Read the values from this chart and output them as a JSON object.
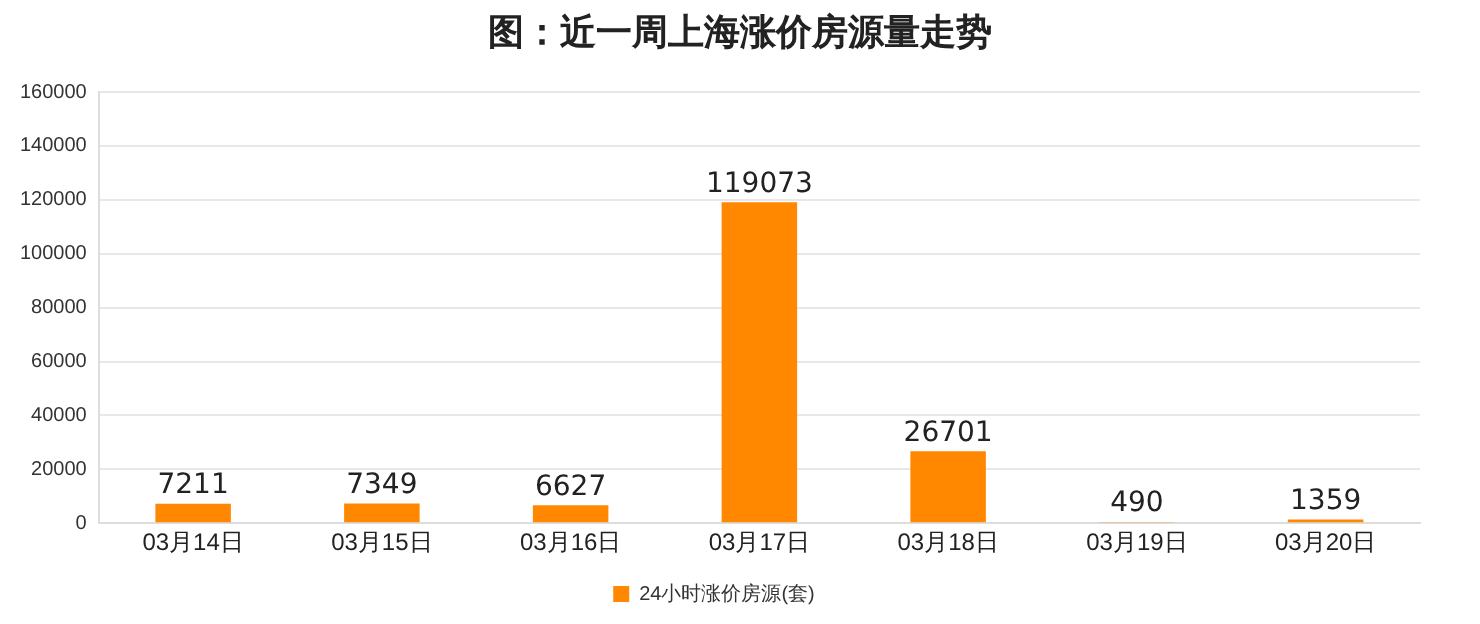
{
  "chart_data": {
    "type": "bar",
    "title": "图：近一周上海涨价房源量走势",
    "categories": [
      "03月14日",
      "03月15日",
      "03月16日",
      "03月17日",
      "03月18日",
      "03月19日",
      "03月20日"
    ],
    "series": [
      {
        "name": "24小时涨价房源(套)",
        "color": "#ff8800",
        "values": [
          7211,
          7349,
          6627,
          119073,
          26701,
          490,
          1359
        ]
      }
    ],
    "ylim": [
      0,
      160000
    ],
    "yticks": [
      0,
      20000,
      40000,
      60000,
      80000,
      100000,
      120000,
      140000,
      160000
    ],
    "grid": "y",
    "legend": "bottom",
    "data_labels": true
  }
}
